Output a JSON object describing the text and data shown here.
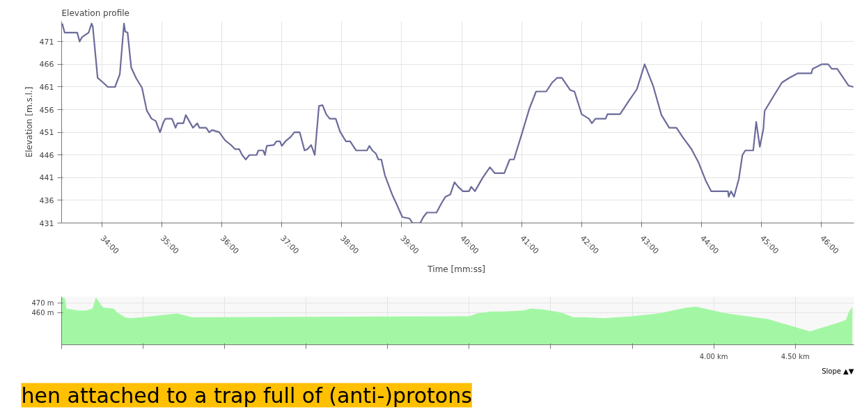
{
  "chart_data": [
    {
      "type": "line",
      "title": "Elevation profile",
      "xlabel": "Time  [mm:ss]",
      "ylabel": "Elevation [m.s.l.]",
      "color": "#6b6b9a",
      "grid": true,
      "marker": "none",
      "line_style": "solid",
      "xlim": [
        33.33,
        46.54
      ],
      "ylim": [
        431,
        475.5
      ],
      "xticks": [
        {
          "value": 34,
          "label": "34:00"
        },
        {
          "value": 35,
          "label": "35:00"
        },
        {
          "value": 36,
          "label": "36:00"
        },
        {
          "value": 37,
          "label": "37:00"
        },
        {
          "value": 38,
          "label": "38:00"
        },
        {
          "value": 39,
          "label": "39:00"
        },
        {
          "value": 40,
          "label": "40:00"
        },
        {
          "value": 41,
          "label": "41:00"
        },
        {
          "value": 42,
          "label": "42:00"
        },
        {
          "value": 43,
          "label": "43:00"
        },
        {
          "value": 44,
          "label": "44:00"
        },
        {
          "value": 45,
          "label": "45:00"
        },
        {
          "value": 46,
          "label": "46:00"
        }
      ],
      "yticks": [
        431,
        436,
        441,
        446,
        451,
        456,
        461,
        466,
        471
      ],
      "x": [
        33.34,
        33.38,
        33.59,
        33.63,
        33.67,
        33.78,
        33.83,
        33.85,
        33.93,
        34.02,
        34.1,
        34.22,
        34.3,
        34.37,
        34.39,
        34.43,
        34.49,
        34.57,
        34.67,
        34.75,
        34.83,
        34.9,
        34.97,
        35.03,
        35.06,
        35.17,
        35.23,
        35.26,
        35.36,
        35.4,
        35.52,
        35.59,
        35.63,
        35.74,
        35.79,
        35.84,
        35.96,
        36.05,
        36.17,
        36.22,
        36.29,
        36.34,
        36.4,
        36.46,
        36.58,
        36.61,
        36.69,
        36.72,
        36.75,
        36.87,
        36.91,
        36.97,
        37.0,
        37.06,
        37.15,
        37.21,
        37.3,
        37.38,
        37.43,
        37.49,
        37.55,
        37.62,
        37.68,
        37.74,
        37.8,
        37.9,
        37.97,
        38.07,
        38.14,
        38.24,
        38.42,
        38.46,
        38.51,
        38.57,
        38.61,
        38.66,
        38.72,
        38.84,
        38.92,
        39.01,
        39.13,
        39.18,
        39.31,
        39.36,
        39.42,
        39.58,
        39.66,
        39.73,
        39.81,
        39.88,
        39.94,
        40.02,
        40.12,
        40.16,
        40.22,
        40.35,
        40.47,
        40.55,
        40.71,
        40.8,
        40.87,
        41.01,
        41.13,
        41.24,
        41.41,
        41.51,
        41.59,
        41.67,
        41.81,
        41.88,
        42.0,
        42.12,
        42.17,
        42.23,
        42.4,
        42.43,
        42.64,
        42.78,
        42.92,
        43.05,
        43.19,
        43.33,
        43.46,
        43.58,
        43.68,
        43.83,
        43.95,
        44.07,
        44.16,
        44.44,
        44.45,
        44.49,
        44.54,
        44.62,
        44.68,
        44.73,
        44.86,
        44.91,
        44.97,
        45.03,
        45.05,
        45.2,
        45.34,
        45.46,
        45.6,
        45.83,
        45.85,
        46.0,
        46.11,
        46.17,
        46.26,
        46.45,
        46.53
      ],
      "values": [
        475,
        473,
        473,
        471,
        472,
        473,
        475,
        474.3,
        463,
        462,
        461,
        461,
        463.8,
        475,
        473.2,
        473,
        465.3,
        463,
        460.8,
        455.8,
        454,
        453.5,
        451,
        453.3,
        454,
        454,
        452,
        453,
        453,
        454.8,
        452,
        453,
        452,
        452,
        451,
        451.5,
        451,
        449.3,
        448,
        447.3,
        447.3,
        446,
        445,
        446,
        446,
        447,
        447,
        446,
        448,
        448.2,
        449,
        449,
        448,
        449,
        450,
        451,
        451,
        447,
        447.3,
        448.2,
        446,
        456.8,
        457,
        455,
        454,
        454,
        451.2,
        449,
        449,
        447,
        447,
        448,
        447,
        446.3,
        445,
        445,
        441.5,
        437.3,
        435,
        432.3,
        432,
        431,
        431,
        432.3,
        433.3,
        433.3,
        435.3,
        436.8,
        437.3,
        440,
        439,
        438,
        438,
        439,
        438,
        441,
        443.3,
        442,
        442,
        445,
        445,
        451,
        456.3,
        460,
        460,
        462,
        463,
        463,
        460.3,
        460,
        455,
        454,
        453,
        454,
        454,
        455,
        455,
        457.8,
        460.5,
        466,
        461.3,
        454.8,
        452,
        452,
        450,
        447.3,
        444.3,
        440.3,
        438,
        438,
        436.8,
        438,
        436.8,
        440.7,
        446,
        447,
        447,
        453.3,
        447.8,
        451.8,
        455.7,
        459,
        462,
        463,
        464,
        464,
        465,
        466,
        466,
        465,
        465,
        461.3,
        461
      ]
    },
    {
      "type": "area",
      "color": "#a3f7a4",
      "grid": true,
      "xlim": [
        0,
        4.86
      ],
      "ylim": [
        426,
        476.5
      ],
      "xticks": [
        {
          "value": 0,
          "label": null
        },
        {
          "value": 0.5,
          "label": null
        },
        {
          "value": 1,
          "label": null
        },
        {
          "value": 1.5,
          "label": null
        },
        {
          "value": 2,
          "label": null
        },
        {
          "value": 2.5,
          "label": null
        },
        {
          "value": 3,
          "label": null
        },
        {
          "value": 3.5,
          "label": null
        },
        {
          "value": 4,
          "label": "4.00 km"
        },
        {
          "value": 4.5,
          "label": "4.50 km"
        }
      ],
      "yticks": [
        {
          "value": 460,
          "label": "460 m"
        },
        {
          "value": 470,
          "label": "470 m"
        }
      ],
      "annotations": [
        "hen attached to a trap full of (anti-)protons",
        "Slope ▲▼"
      ],
      "x": [
        0,
        0.02,
        0.03,
        0.07,
        0.1,
        0.15,
        0.19,
        0.21,
        0.25,
        0.26,
        0.32,
        0.34,
        0.39,
        0.42,
        0.49,
        0.71,
        0.8,
        1.5,
        2.5,
        2.55,
        2.63,
        2.71,
        2.83,
        2.88,
        2.96,
        3.06,
        3.14,
        3.21,
        3.33,
        3.5,
        3.66,
        3.83,
        3.89,
        4.08,
        4.33,
        4.59,
        4.74,
        4.81,
        4.83,
        4.85
      ],
      "values": [
        476,
        475,
        464,
        463,
        462,
        462,
        464,
        476,
        466,
        465,
        464,
        460,
        455,
        454,
        455,
        459,
        455,
        null,
        456,
        459,
        461,
        461,
        462,
        464,
        463,
        460,
        455,
        455,
        454,
        456,
        459,
        465,
        466,
        459,
        453,
        440,
        448,
        452,
        461,
        466
      ]
    }
  ]
}
